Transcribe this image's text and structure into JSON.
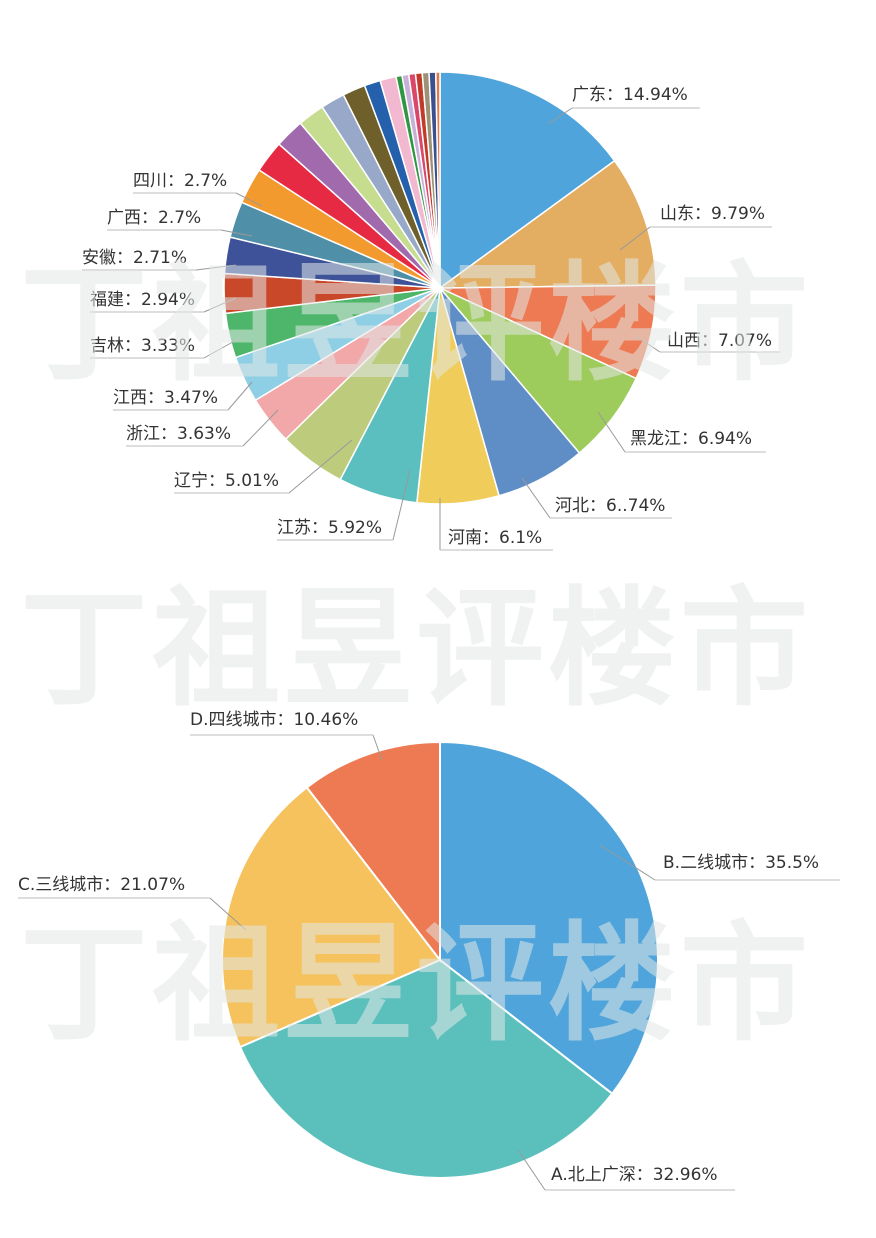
{
  "watermark": "丁祖昱评楼市",
  "chart_data": [
    {
      "type": "pie",
      "start": "top, clockwise",
      "slices": [
        {
          "label": "广东：14.94%",
          "name": "广东",
          "value": 14.94,
          "color": "#4fa5db"
        },
        {
          "label": "山东：9.79%",
          "name": "山东",
          "value": 9.79,
          "color": "#e3ae62"
        },
        {
          "label": "山西：7.07%",
          "name": "山西",
          "value": 7.07,
          "color": "#ee7a53"
        },
        {
          "label": "黑龙江：6.94%",
          "name": "黑龙江",
          "value": 6.94,
          "color": "#9dcb5c"
        },
        {
          "label": "河北：6..74%",
          "name": "河北",
          "value": 6.74,
          "color": "#5f8dc6"
        },
        {
          "label": "河南：6.1%",
          "name": "河南",
          "value": 6.1,
          "color": "#f0cd5a"
        },
        {
          "label": "江苏：5.92%",
          "name": "江苏",
          "value": 5.92,
          "color": "#5bbfbf"
        },
        {
          "label": "辽宁：5.01%",
          "name": "辽宁",
          "value": 5.01,
          "color": "#bccb7c"
        },
        {
          "label": "浙江：3.63%",
          "name": "浙江",
          "value": 3.63,
          "color": "#f2a7a9"
        },
        {
          "label": "江西：3.47%",
          "name": "江西",
          "value": 3.47,
          "color": "#8ecfe6"
        },
        {
          "label": "吉林：3.33%",
          "name": "吉林",
          "value": 3.33,
          "color": "#4db66a"
        },
        {
          "label": "福建：2.94%",
          "name": "福建",
          "value": 2.94,
          "color": "#c9482a"
        },
        {
          "label": "安徽：2.71%",
          "name": "安徽",
          "value": 2.71,
          "color": "#3e5299"
        },
        {
          "label": "广西：2.7%",
          "name": "广西",
          "value": 2.7,
          "color": "#4f8fa8"
        },
        {
          "label": "四川：2.7%",
          "name": "四川",
          "value": 2.7,
          "color": "#f29a2e"
        },
        {
          "value": 2.4,
          "color": "#e72a43"
        },
        {
          "value": 2.2,
          "color": "#a16aad"
        },
        {
          "value": 2.0,
          "color": "#c6dd8f"
        },
        {
          "value": 1.8,
          "color": "#97a8c9"
        },
        {
          "value": 1.7,
          "color": "#6f5f2b"
        },
        {
          "value": 1.2,
          "color": "#2560ad"
        },
        {
          "value": 1.2,
          "color": "#f2b8cf"
        },
        {
          "value": 0.45,
          "color": "#2f9641"
        },
        {
          "value": 0.5,
          "color": "#c9b0d8"
        },
        {
          "value": 0.5,
          "color": "#d9486a"
        },
        {
          "value": 0.5,
          "color": "#c23a2a"
        },
        {
          "value": 0.5,
          "color": "#9e9276"
        },
        {
          "value": 0.5,
          "color": "#3c4f8f"
        },
        {
          "value": 0.31,
          "color": "#e07b4a"
        }
      ]
    },
    {
      "type": "pie",
      "start": "top, clockwise",
      "slices": [
        {
          "label": "B.二线城市：35.5%",
          "name": "B.二线城市",
          "value": 35.5,
          "color": "#4fa5db"
        },
        {
          "label": "A.北上广深：32.96%",
          "name": "A.北上广深",
          "value": 32.96,
          "color": "#5bc0bc"
        },
        {
          "label": "C.三线城市：21.07%",
          "name": "C.三线城市",
          "value": 21.07,
          "color": "#f5c25e"
        },
        {
          "label": "D.四线城市：10.46%",
          "name": "D.四线城市",
          "value": 10.46,
          "color": "#ee7a53"
        }
      ]
    }
  ]
}
